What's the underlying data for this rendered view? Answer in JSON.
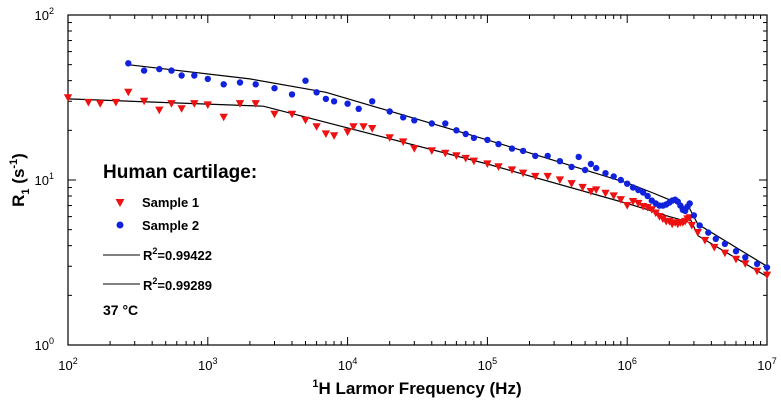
{
  "chart_data": {
    "type": "scatter",
    "xscale": "log",
    "yscale": "log",
    "xlim": [
      100,
      10000000
    ],
    "ylim": [
      1,
      100
    ],
    "xlabel_sup": "1",
    "xlabel": "H Larmor Frequency (Hz)",
    "ylabel_main": "R",
    "ylabel_sub": "1",
    "ylabel_unit_open": " (s",
    "ylabel_unit_sup": "-1",
    "ylabel_unit_close": ")",
    "x_ticks": [
      {
        "value": 100,
        "base": "10",
        "exp": "2"
      },
      {
        "value": 1000,
        "base": "10",
        "exp": "3"
      },
      {
        "value": 10000,
        "base": "10",
        "exp": "4"
      },
      {
        "value": 100000,
        "base": "10",
        "exp": "5"
      },
      {
        "value": 1000000,
        "base": "10",
        "exp": "6"
      },
      {
        "value": 10000000,
        "base": "10",
        "exp": "7"
      }
    ],
    "y_ticks": [
      {
        "value": 1,
        "base": "10",
        "exp": "0"
      },
      {
        "value": 10,
        "base": "10",
        "exp": "1"
      },
      {
        "value": 100,
        "base": "10",
        "exp": "2"
      }
    ],
    "legend": {
      "title": "Human cartilage:",
      "sample1": "Sample 1",
      "sample2": "Sample 2",
      "fit1_prefix": "R",
      "fit1_sup": "2",
      "fit1_value": "=0.99422",
      "fit2_prefix": "R",
      "fit2_sup": "2",
      "fit2_value": "=0.99289",
      "temperature": "37 °C"
    },
    "colors": {
      "sample1": "#ee1111",
      "sample2": "#1122dd",
      "fit": "#000000"
    },
    "series": [
      {
        "name": "Sample 1",
        "marker": "triangle-down",
        "points": [
          [
            100,
            31.5
          ],
          [
            140,
            29.5
          ],
          [
            170,
            29
          ],
          [
            220,
            29.5
          ],
          [
            270,
            34
          ],
          [
            350,
            30
          ],
          [
            450,
            26.5
          ],
          [
            550,
            29
          ],
          [
            650,
            27
          ],
          [
            800,
            29
          ],
          [
            1000,
            28.5
          ],
          [
            1300,
            24
          ],
          [
            1700,
            29
          ],
          [
            2200,
            29
          ],
          [
            3000,
            25
          ],
          [
            4000,
            25
          ],
          [
            5000,
            23
          ],
          [
            6000,
            21
          ],
          [
            7000,
            19
          ],
          [
            8000,
            18.5
          ],
          [
            10000,
            19.5
          ],
          [
            11000,
            21
          ],
          [
            13000,
            21
          ],
          [
            15000,
            20.5
          ],
          [
            20000,
            18
          ],
          [
            25000,
            17
          ],
          [
            30000,
            15.5
          ],
          [
            40000,
            15
          ],
          [
            50000,
            14.5
          ],
          [
            60000,
            14
          ],
          [
            70000,
            13.5
          ],
          [
            80000,
            13
          ],
          [
            100000,
            12.5
          ],
          [
            120000,
            12
          ],
          [
            150000,
            11.5
          ],
          [
            180000,
            11
          ],
          [
            220000,
            10.5
          ],
          [
            270000,
            10.5
          ],
          [
            330000,
            10
          ],
          [
            400000,
            9.5
          ],
          [
            480000,
            9
          ],
          [
            550000,
            8.5
          ],
          [
            600000,
            8.7
          ],
          [
            700000,
            8.3
          ],
          [
            800000,
            8
          ],
          [
            900000,
            7.6
          ],
          [
            1000000,
            7
          ],
          [
            1100000,
            7.4
          ],
          [
            1200000,
            7.2
          ],
          [
            1300000,
            6.9
          ],
          [
            1400000,
            6.8
          ],
          [
            1500000,
            6.6
          ],
          [
            1600000,
            6.3
          ],
          [
            1700000,
            6
          ],
          [
            1800000,
            5.8
          ],
          [
            1900000,
            5.6
          ],
          [
            2000000,
            5.6
          ],
          [
            2100000,
            5.4
          ],
          [
            2200000,
            5.5
          ],
          [
            2300000,
            5.4
          ],
          [
            2400000,
            5.5
          ],
          [
            2500000,
            5.5
          ],
          [
            2600000,
            5.6
          ],
          [
            2700000,
            5.8
          ],
          [
            2800000,
            5.9
          ],
          [
            2900000,
            5.3
          ],
          [
            3200000,
            4.8
          ],
          [
            3600000,
            4.3
          ],
          [
            4200000,
            3.9
          ],
          [
            5000000,
            3.6
          ],
          [
            6000000,
            3.3
          ],
          [
            7000000,
            3.1
          ],
          [
            8500000,
            2.8
          ],
          [
            10000000,
            2.65
          ]
        ]
      },
      {
        "name": "Sample 2",
        "marker": "circle",
        "points": [
          [
            270,
            51
          ],
          [
            350,
            46
          ],
          [
            450,
            47
          ],
          [
            550,
            46
          ],
          [
            650,
            43
          ],
          [
            800,
            43
          ],
          [
            1000,
            41
          ],
          [
            1300,
            38
          ],
          [
            1700,
            39
          ],
          [
            2200,
            38
          ],
          [
            3000,
            36
          ],
          [
            4000,
            33
          ],
          [
            5000,
            40
          ],
          [
            6000,
            34
          ],
          [
            7000,
            31
          ],
          [
            8000,
            30
          ],
          [
            10000,
            29
          ],
          [
            12000,
            27
          ],
          [
            15000,
            30
          ],
          [
            20000,
            26
          ],
          [
            25000,
            24
          ],
          [
            30000,
            23
          ],
          [
            40000,
            22
          ],
          [
            50000,
            22
          ],
          [
            60000,
            20
          ],
          [
            70000,
            19
          ],
          [
            80000,
            18
          ],
          [
            100000,
            17.5
          ],
          [
            120000,
            16.5
          ],
          [
            150000,
            15.5
          ],
          [
            180000,
            15
          ],
          [
            220000,
            14
          ],
          [
            270000,
            14
          ],
          [
            330000,
            13
          ],
          [
            400000,
            12
          ],
          [
            450000,
            13.8
          ],
          [
            500000,
            11.5
          ],
          [
            550000,
            12.5
          ],
          [
            600000,
            11.8
          ],
          [
            700000,
            11
          ],
          [
            800000,
            10.5
          ],
          [
            900000,
            10
          ],
          [
            1000000,
            9.5
          ],
          [
            1100000,
            9
          ],
          [
            1200000,
            8.7
          ],
          [
            1300000,
            8.4
          ],
          [
            1400000,
            8
          ],
          [
            1500000,
            7.5
          ],
          [
            1600000,
            7.2
          ],
          [
            1700000,
            7
          ],
          [
            1800000,
            7
          ],
          [
            1900000,
            7.1
          ],
          [
            2000000,
            7.3
          ],
          [
            2100000,
            7.5
          ],
          [
            2200000,
            7.6
          ],
          [
            2300000,
            7.4
          ],
          [
            2400000,
            7
          ],
          [
            2500000,
            6.6
          ],
          [
            2600000,
            6.5
          ],
          [
            2700000,
            6.9
          ],
          [
            2800000,
            7.2
          ],
          [
            3000000,
            6.1
          ],
          [
            3300000,
            5.3
          ],
          [
            3800000,
            4.8
          ],
          [
            4300000,
            4.4
          ],
          [
            5000000,
            4.1
          ],
          [
            6000000,
            3.7
          ],
          [
            7000000,
            3.4
          ],
          [
            8500000,
            3.1
          ],
          [
            10000000,
            2.95
          ]
        ]
      }
    ],
    "fits": [
      {
        "name": "R2=0.99422",
        "points": [
          [
            270,
            50
          ],
          [
            2000,
            41
          ],
          [
            7000,
            34
          ],
          [
            100000,
            17.5
          ],
          [
            1000000,
            9.6
          ],
          [
            1500000,
            8.4
          ],
          [
            2000000,
            7.6
          ],
          [
            2500000,
            6.9
          ],
          [
            2800000,
            6.7
          ],
          [
            3200000,
            5.4
          ],
          [
            10000000,
            3
          ]
        ]
      },
      {
        "name": "R2=0.99289",
        "points": [
          [
            100,
            31
          ],
          [
            2500,
            28
          ],
          [
            100000,
            12.5
          ],
          [
            1000000,
            7.2
          ],
          [
            1500000,
            6.5
          ],
          [
            2000000,
            6.0
          ],
          [
            2500000,
            5.7
          ],
          [
            2800000,
            5.9
          ],
          [
            3200000,
            4.6
          ],
          [
            10000000,
            2.6
          ]
        ]
      }
    ]
  }
}
